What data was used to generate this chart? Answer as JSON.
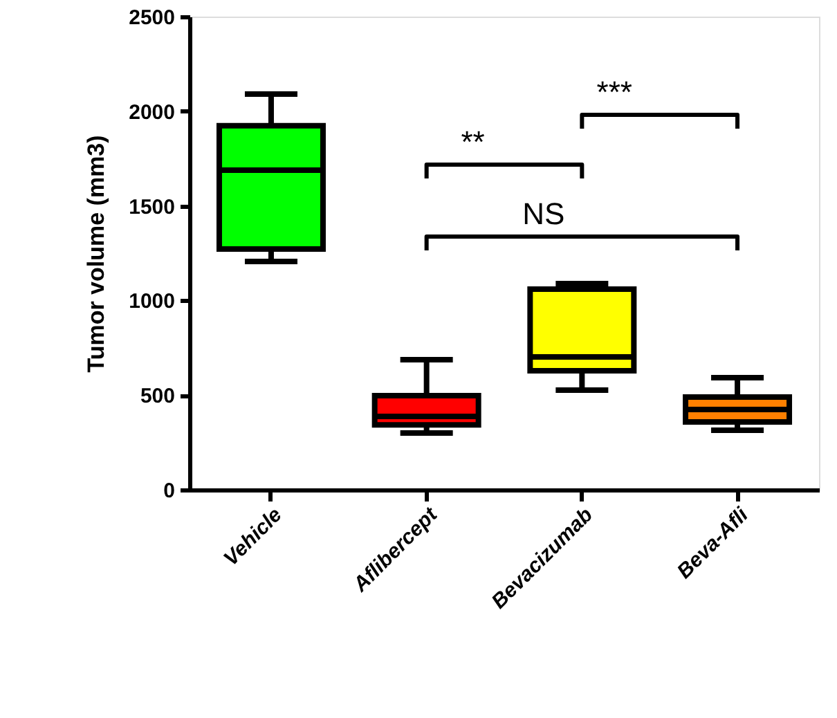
{
  "chart_data": {
    "type": "box",
    "ylabel": "Tumor volume (mm3)",
    "categories": [
      "Vehicle",
      "Aflibercept",
      "Bevacizumab",
      "Beva-Afli"
    ],
    "colors": [
      "#00ff00",
      "#ff0000",
      "#ffff00",
      "#ff8000"
    ],
    "boxes": [
      {
        "low": 1206,
        "q1": 1272,
        "median": 1689,
        "q3": 1923,
        "high": 2091
      },
      {
        "low": 300,
        "q1": 343,
        "median": 387,
        "q3": 497,
        "high": 687
      },
      {
        "low": 526,
        "q1": 629,
        "median": 702,
        "q3": 1060,
        "high": 1089
      },
      {
        "low": 314,
        "q1": 358,
        "median": 424,
        "q3": 490,
        "high": 592
      }
    ],
    "ylim": [
      0,
      2500
    ],
    "yticks": [
      0,
      500,
      1000,
      1500,
      2000,
      2500
    ],
    "grid": false,
    "annotations": [
      "**",
      "***",
      "NS"
    ]
  }
}
